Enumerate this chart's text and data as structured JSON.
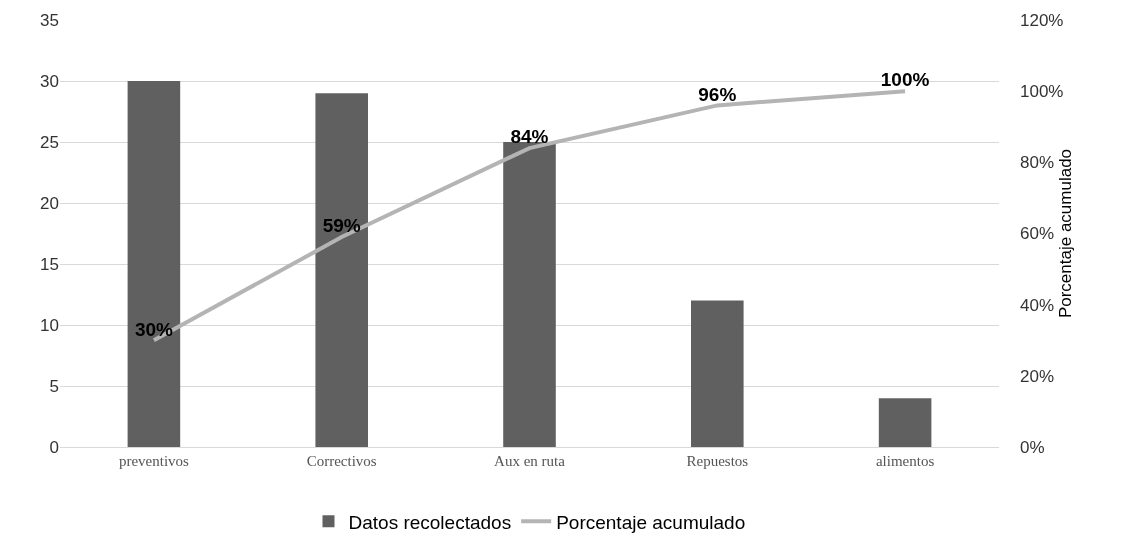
{
  "chart_data": {
    "type": "bar",
    "categories": [
      "preventivos",
      "Correctivos",
      "Aux en ruta",
      "Repuestos",
      "alimentos"
    ],
    "series": [
      {
        "name": "Datos recolectados",
        "color": "#606060",
        "values": [
          30,
          29,
          25,
          12,
          4
        ]
      },
      {
        "name": "Porcentaje acumulado",
        "type": "line",
        "axis": "y2",
        "color": "#b4b4b4",
        "values": [
          30,
          59,
          84,
          96,
          100
        ],
        "value_labels": [
          "30%",
          "59%",
          "84%",
          "96%",
          "100%"
        ]
      }
    ],
    "ylim": [
      0,
      35
    ],
    "yticks": [
      0,
      5,
      10,
      15,
      20,
      25,
      30,
      35
    ],
    "y2lim": [
      0,
      120
    ],
    "y2ticks": [
      {
        "value": 0,
        "label": "0%"
      },
      {
        "value": 20,
        "label": "20%"
      },
      {
        "value": 40,
        "label": "40%"
      },
      {
        "value": 60,
        "label": "60%"
      },
      {
        "value": 80,
        "label": "80%"
      },
      {
        "value": 100,
        "label": "100%"
      },
      {
        "value": 120,
        "label": "120%"
      }
    ],
    "y2label": "Porcentaje acumulado",
    "grid": "y",
    "legend": "bottom",
    "marker": "none",
    "line_style": "solid"
  }
}
